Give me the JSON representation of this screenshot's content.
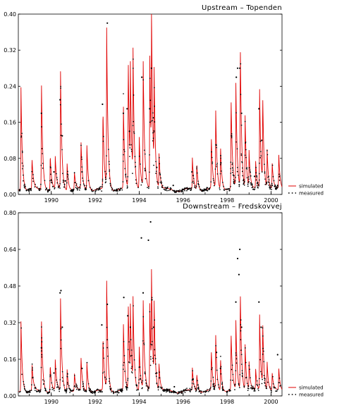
{
  "chart_data": [
    {
      "type": "line",
      "title": "Upstream – Topenden",
      "xlabel": "",
      "ylabel": "",
      "xlim": [
        1988.5,
        2000.5
      ],
      "ylim": [
        0,
        0.4
      ],
      "yticks": [
        "0.00",
        "0.08",
        "0.16",
        "0.24",
        "0.32",
        "0.40"
      ],
      "xticks": [
        "1990",
        "1992",
        "1994",
        "1996",
        "1998",
        "2000"
      ],
      "baseline": 0.01,
      "legend": {
        "position": "right",
        "entries": [
          "simulated",
          "measured"
        ]
      },
      "colors": {
        "simulated": "#e00000",
        "measured": "#000000"
      },
      "series": [
        {
          "name": "simulated",
          "style": "line",
          "peaks": [
            [
              1988.62,
              0.23
            ],
            [
              1989.12,
              0.07
            ],
            [
              1989.55,
              0.25
            ],
            [
              1989.95,
              0.08
            ],
            [
              1990.18,
              0.07
            ],
            [
              1990.42,
              0.26
            ],
            [
              1990.72,
              0.06
            ],
            [
              1991.05,
              0.04
            ],
            [
              1991.35,
              0.11
            ],
            [
              1991.62,
              0.1
            ],
            [
              1992.35,
              0.18
            ],
            [
              1992.52,
              0.35
            ],
            [
              1993.28,
              0.19
            ],
            [
              1993.5,
              0.3
            ],
            [
              1993.6,
              0.23
            ],
            [
              1993.72,
              0.28
            ],
            [
              1994.0,
              0.12
            ],
            [
              1994.18,
              0.29
            ],
            [
              1994.48,
              0.31
            ],
            [
              1994.56,
              0.33
            ],
            [
              1994.68,
              0.22
            ],
            [
              1994.9,
              0.08
            ],
            [
              1996.42,
              0.07
            ],
            [
              1996.62,
              0.06
            ],
            [
              1997.28,
              0.12
            ],
            [
              1997.48,
              0.18
            ],
            [
              1997.7,
              0.1
            ],
            [
              1998.18,
              0.21
            ],
            [
              1998.4,
              0.23
            ],
            [
              1998.6,
              0.33
            ],
            [
              1998.82,
              0.16
            ],
            [
              1999.0,
              0.08
            ],
            [
              1999.3,
              0.06
            ],
            [
              1999.48,
              0.22
            ],
            [
              1999.62,
              0.2
            ],
            [
              1999.82,
              0.09
            ],
            [
              2000.05,
              0.06
            ],
            [
              2000.35,
              0.08
            ]
          ]
        },
        {
          "name": "measured",
          "style": "dots",
          "points": [
            [
              1989.55,
              0.18
            ],
            [
              1990.4,
              0.21
            ],
            [
              1990.5,
              0.13
            ],
            [
              1990.12,
              0.05
            ],
            [
              1990.65,
              0.03
            ],
            [
              1991.4,
              0.05
            ],
            [
              1992.33,
              0.2
            ],
            [
              1992.55,
              0.38
            ],
            [
              1993.28,
              0.18
            ],
            [
              1993.45,
              0.19
            ],
            [
              1993.56,
              0.14
            ],
            [
              1994.12,
              0.26
            ],
            [
              1994.48,
              0.19
            ],
            [
              1994.56,
              0.28
            ],
            [
              1994.64,
              0.17
            ],
            [
              1994.8,
              0.06
            ],
            [
              1995.55,
              0.02
            ],
            [
              1996.4,
              0.05
            ],
            [
              1997.5,
              0.11
            ],
            [
              1997.72,
              0.07
            ],
            [
              1998.2,
              0.13
            ],
            [
              1998.42,
              0.26
            ],
            [
              1998.48,
              0.28
            ],
            [
              1998.58,
              0.28
            ],
            [
              1998.66,
              0.18
            ],
            [
              1999.25,
              0.04
            ],
            [
              1999.45,
              0.19
            ],
            [
              1999.58,
              0.12
            ],
            [
              2000.05,
              0.02
            ],
            [
              2000.3,
              0.02
            ]
          ]
        }
      ]
    },
    {
      "type": "line",
      "title": "Downstream – Fredskovvej",
      "xlabel": "",
      "ylabel": "",
      "xlim": [
        1988.5,
        2000.5
      ],
      "ylim": [
        0,
        0.8
      ],
      "yticks": [
        "0.00",
        "0.16",
        "0.32",
        "0.48",
        "0.64",
        "0.80"
      ],
      "xticks": [
        "1990",
        "1992",
        "1994",
        "1996",
        "1998",
        "2000"
      ],
      "baseline": 0.02,
      "legend": {
        "position": "right",
        "entries": [
          "simulated",
          "measured"
        ]
      },
      "colors": {
        "simulated": "#e00000",
        "measured": "#000000"
      },
      "series": [
        {
          "name": "simulated",
          "style": "line",
          "peaks": [
            [
              1988.62,
              0.31
            ],
            [
              1989.12,
              0.12
            ],
            [
              1989.55,
              0.33
            ],
            [
              1989.95,
              0.12
            ],
            [
              1990.18,
              0.13
            ],
            [
              1990.42,
              0.4
            ],
            [
              1990.72,
              0.1
            ],
            [
              1991.05,
              0.08
            ],
            [
              1991.35,
              0.15
            ],
            [
              1991.62,
              0.13
            ],
            [
              1992.35,
              0.24
            ],
            [
              1992.52,
              0.47
            ],
            [
              1993.28,
              0.3
            ],
            [
              1993.5,
              0.4
            ],
            [
              1993.6,
              0.31
            ],
            [
              1993.72,
              0.37
            ],
            [
              1994.0,
              0.2
            ],
            [
              1994.18,
              0.4
            ],
            [
              1994.48,
              0.4
            ],
            [
              1994.56,
              0.43
            ],
            [
              1994.68,
              0.33
            ],
            [
              1994.9,
              0.12
            ],
            [
              1996.42,
              0.1
            ],
            [
              1996.62,
              0.08
            ],
            [
              1997.28,
              0.18
            ],
            [
              1997.48,
              0.25
            ],
            [
              1997.7,
              0.15
            ],
            [
              1998.18,
              0.26
            ],
            [
              1998.4,
              0.3
            ],
            [
              1998.6,
              0.45
            ],
            [
              1998.82,
              0.2
            ],
            [
              1999.0,
              0.12
            ],
            [
              1999.3,
              0.09
            ],
            [
              1999.48,
              0.33
            ],
            [
              1999.62,
              0.29
            ],
            [
              1999.82,
              0.13
            ],
            [
              2000.05,
              0.08
            ],
            [
              2000.35,
              0.1
            ]
          ]
        },
        {
          "name": "measured",
          "style": "dots",
          "points": [
            [
              1989.55,
              0.21
            ],
            [
              1990.4,
              0.45
            ],
            [
              1990.44,
              0.46
            ],
            [
              1990.5,
              0.3
            ],
            [
              1990.12,
              0.1
            ],
            [
              1991.4,
              0.12
            ],
            [
              1992.3,
              0.31
            ],
            [
              1992.55,
              0.4
            ],
            [
              1993.3,
              0.43
            ],
            [
              1993.48,
              0.35
            ],
            [
              1993.6,
              0.3
            ],
            [
              1994.1,
              0.69
            ],
            [
              1994.18,
              0.45
            ],
            [
              1994.42,
              0.68
            ],
            [
              1994.52,
              0.76
            ],
            [
              1994.58,
              0.42
            ],
            [
              1994.66,
              0.3
            ],
            [
              1994.8,
              0.1
            ],
            [
              1995.6,
              0.04
            ],
            [
              1996.42,
              0.07
            ],
            [
              1997.52,
              0.19
            ],
            [
              1997.7,
              0.12
            ],
            [
              1998.4,
              0.41
            ],
            [
              1998.48,
              0.6
            ],
            [
              1998.54,
              0.53
            ],
            [
              1998.58,
              0.64
            ],
            [
              1998.66,
              0.3
            ],
            [
              1999.45,
              0.41
            ],
            [
              1999.55,
              0.3
            ],
            [
              2000.3,
              0.18
            ]
          ]
        }
      ]
    }
  ]
}
